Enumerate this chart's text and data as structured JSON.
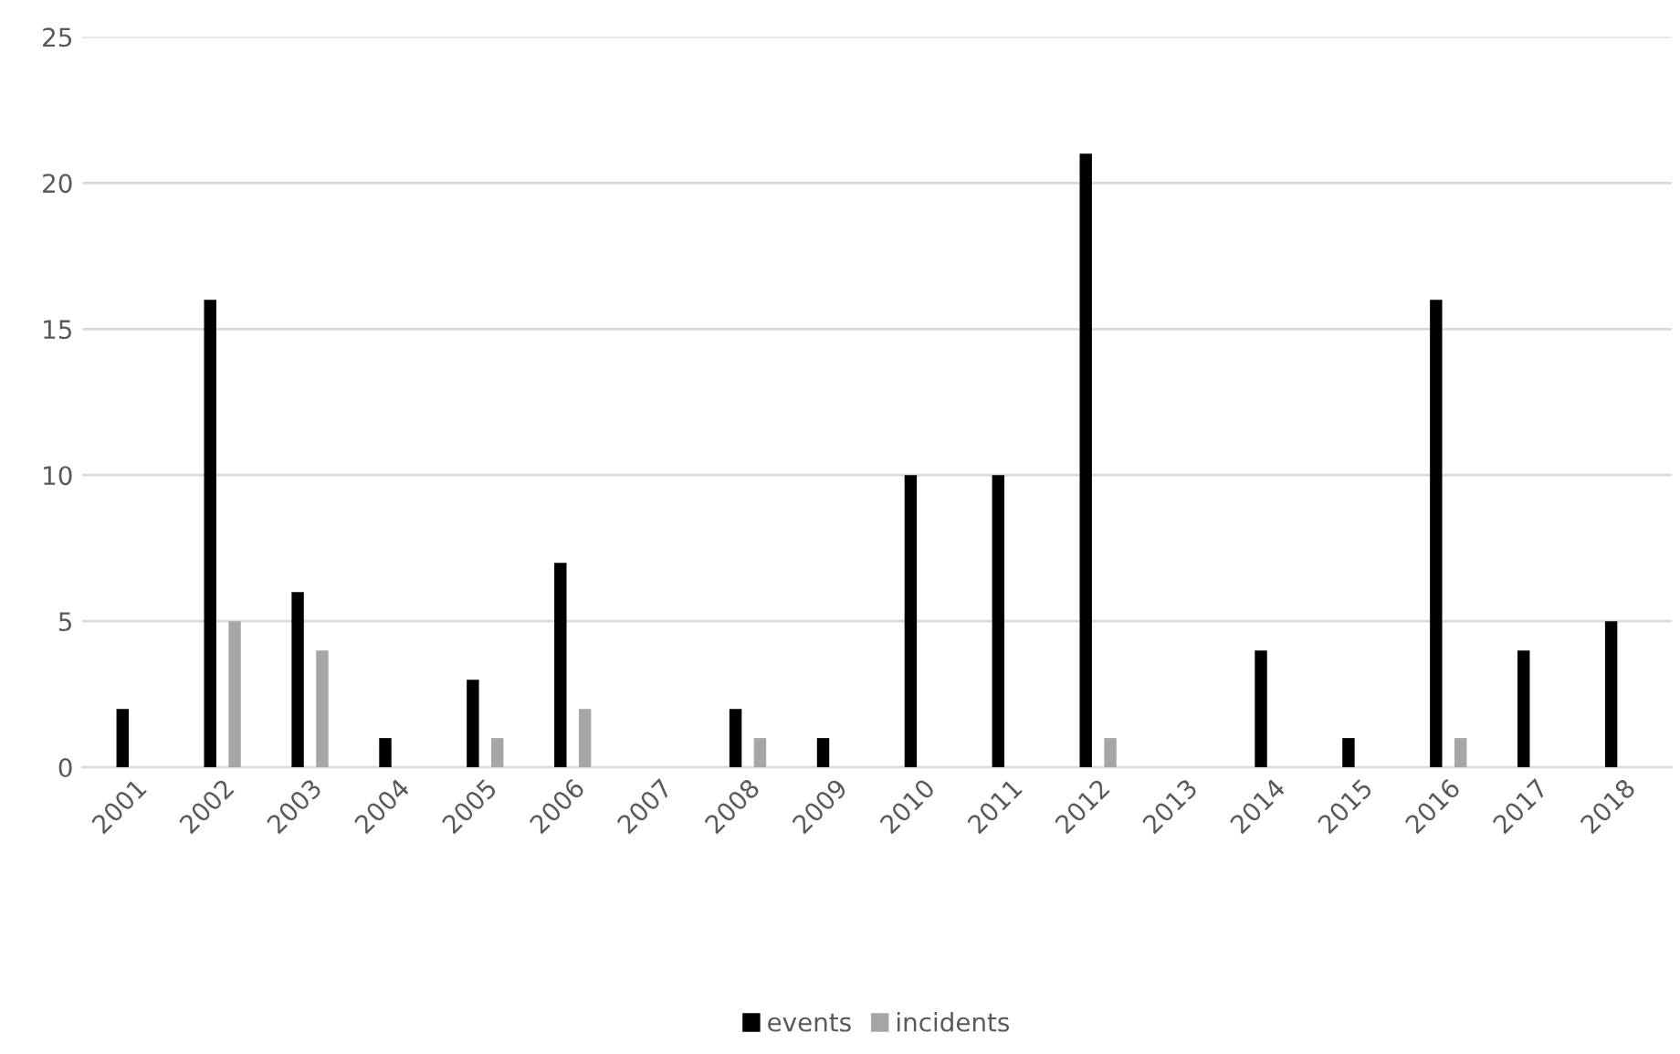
{
  "chart_data": {
    "type": "bar",
    "categories": [
      "2001",
      "2002",
      "2003",
      "2004",
      "2005",
      "2006",
      "2007",
      "2008",
      "2009",
      "2010",
      "2011",
      "2012",
      "2013",
      "2014",
      "2015",
      "2016",
      "2017",
      "2018"
    ],
    "series": [
      {
        "name": "events",
        "color": "#000000",
        "values": [
          2,
          16,
          6,
          1,
          3,
          7,
          0,
          2,
          1,
          10,
          10,
          21,
          0,
          4,
          1,
          16,
          4,
          5
        ]
      },
      {
        "name": "incidents",
        "color": "#a6a6a6",
        "values": [
          0,
          5,
          4,
          0,
          1,
          2,
          0,
          1,
          0,
          0,
          0,
          1,
          0,
          0,
          0,
          1,
          0,
          0
        ]
      }
    ],
    "ylim": [
      0,
      25
    ],
    "yticks": [
      0,
      5,
      10,
      15,
      20,
      25
    ],
    "grid": "y",
    "legend": "bottom"
  }
}
